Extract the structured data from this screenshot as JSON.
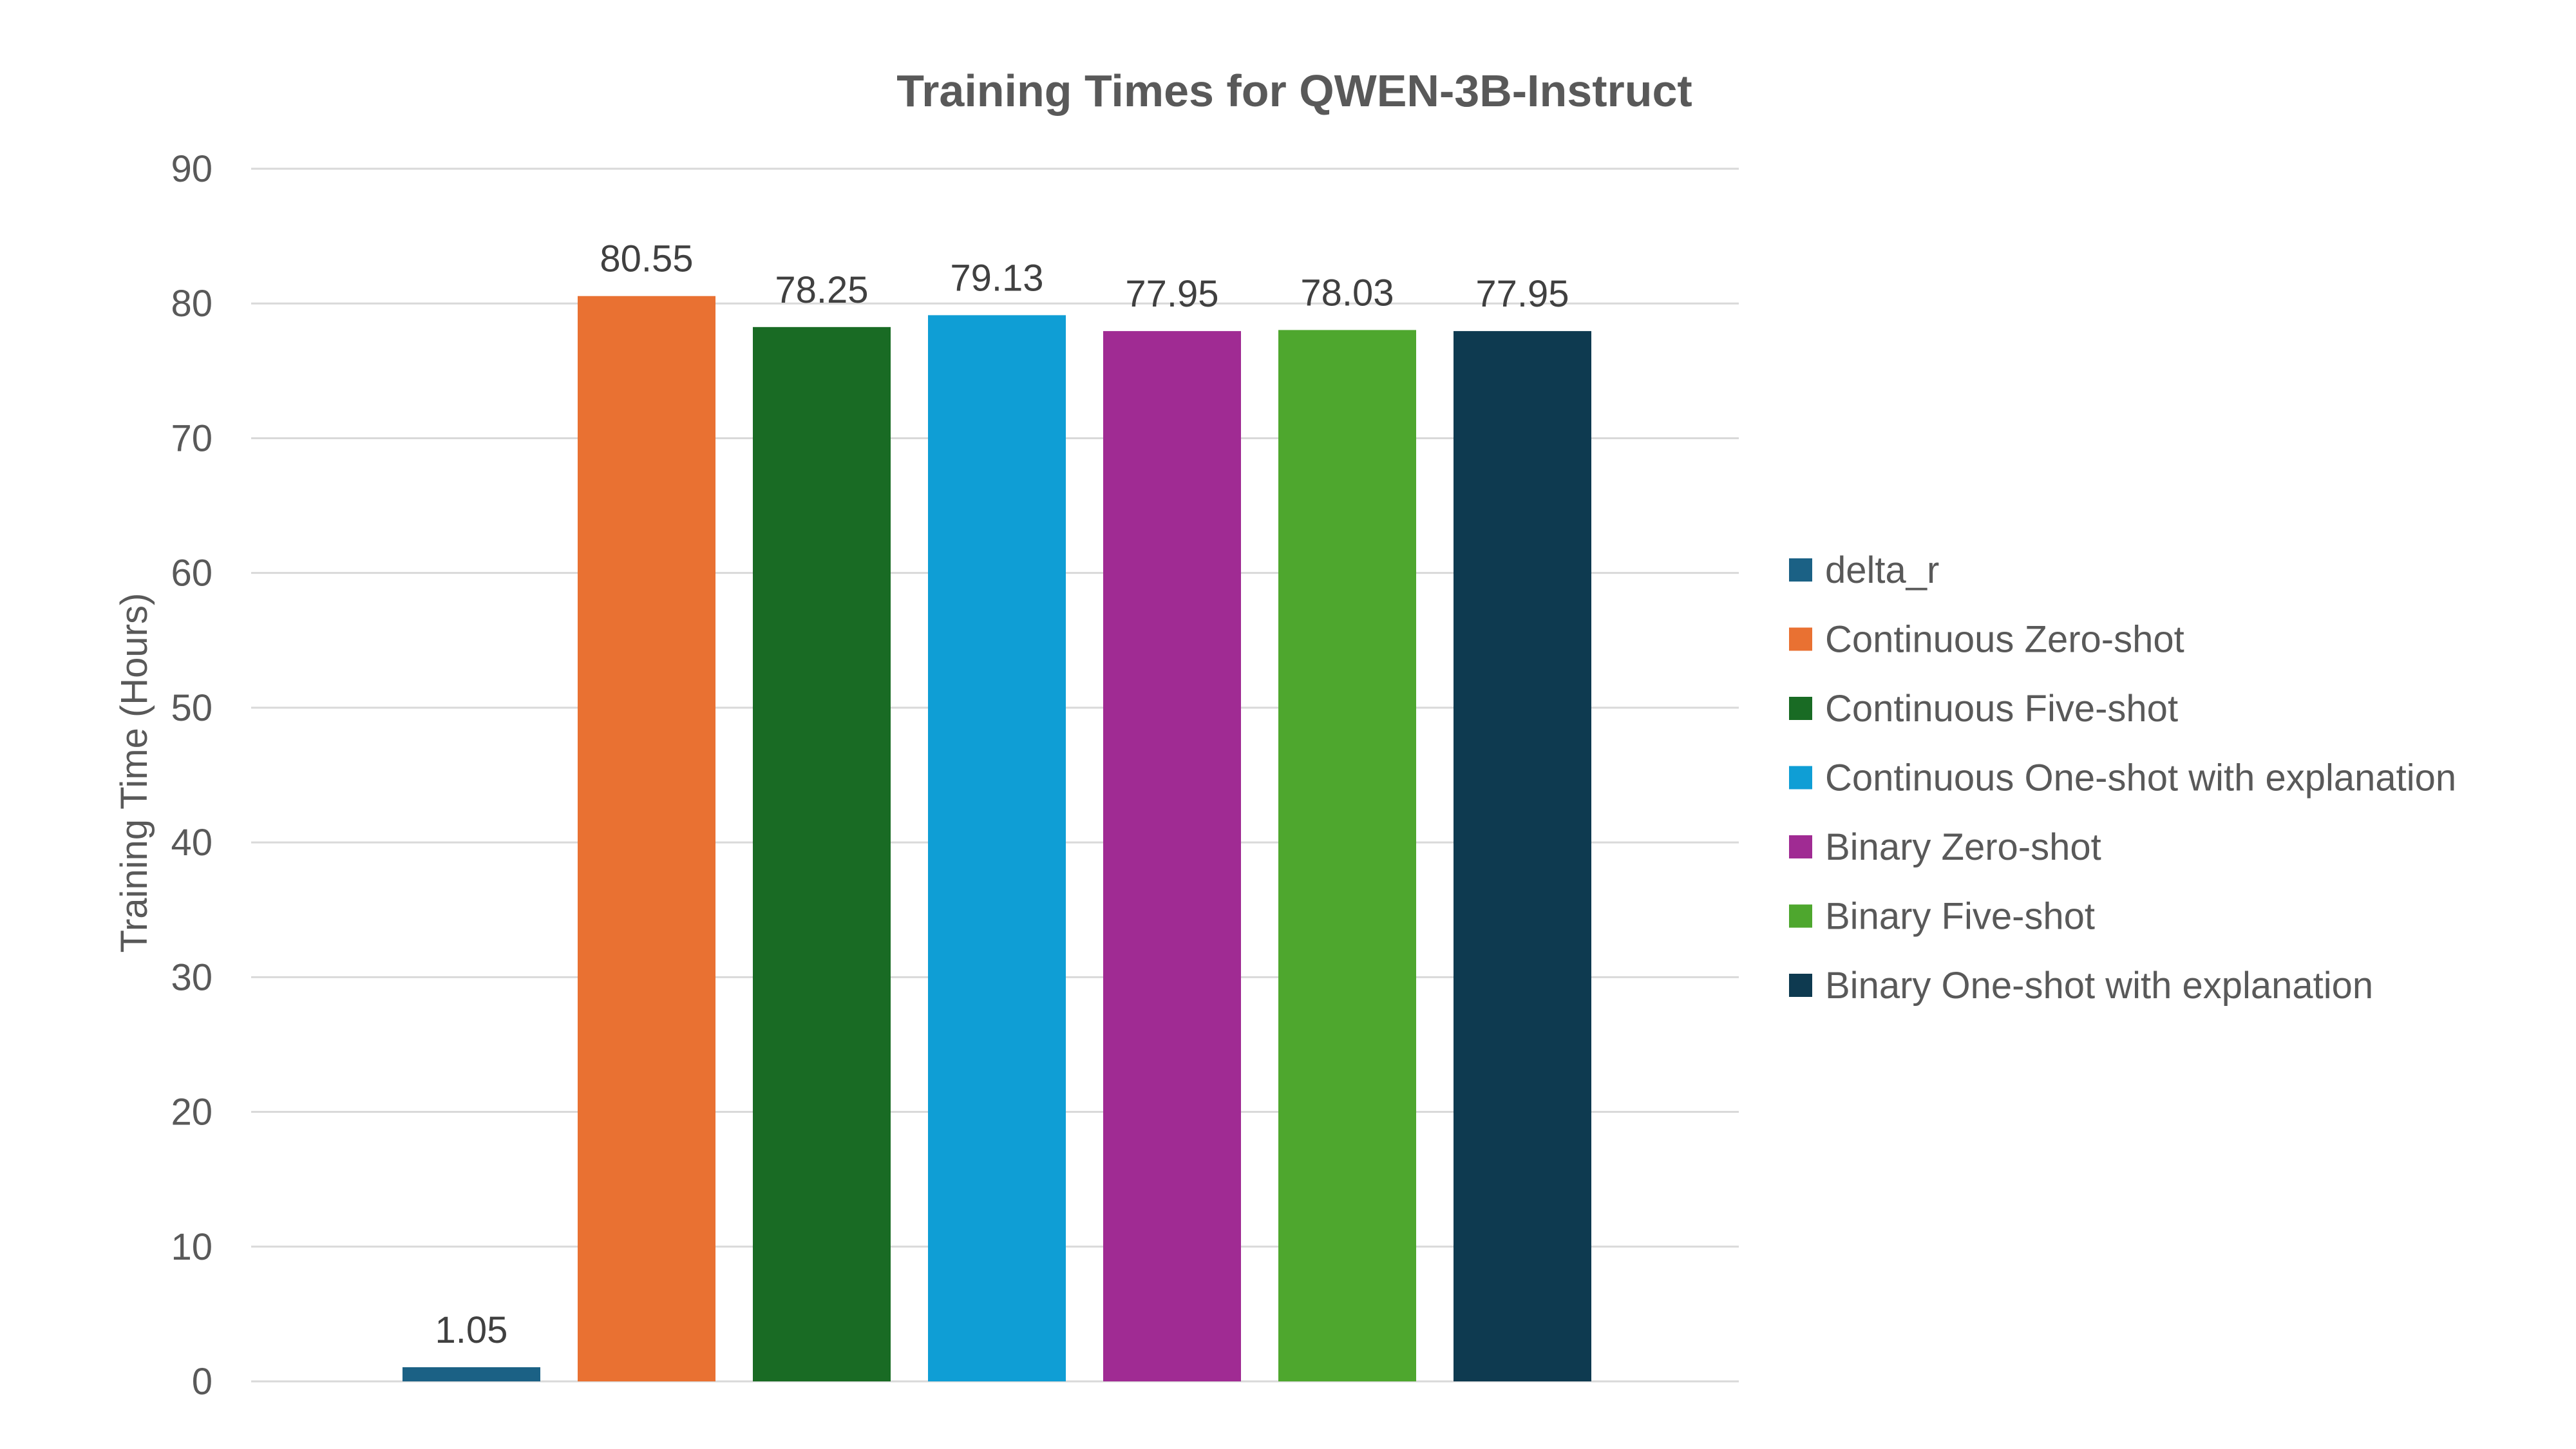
{
  "chart_data": {
    "type": "bar",
    "title": "Training Times for QWEN-3B-Instruct",
    "ylabel": "Training Time (Hours)",
    "xlabel": "",
    "ylim": [
      0,
      90
    ],
    "yticks": [
      0,
      10,
      20,
      30,
      40,
      50,
      60,
      70,
      80,
      90
    ],
    "grid": true,
    "legend_position": "right",
    "series": [
      {
        "name": "delta_r",
        "value": 1.05,
        "label": "1.05",
        "color": "#1b6185"
      },
      {
        "name": "Continuous Zero-shot",
        "value": 80.55,
        "label": "80.55",
        "color": "#e97132"
      },
      {
        "name": "Continuous Five-shot",
        "value": 78.25,
        "label": "78.25",
        "color": "#196b24"
      },
      {
        "name": "Continuous One-shot with explanation",
        "value": 79.13,
        "label": "79.13",
        "color": "#0f9ed5"
      },
      {
        "name": "Binary Zero-shot",
        "value": 77.95,
        "label": "77.95",
        "color": "#a02b93"
      },
      {
        "name": "Binary Five-shot",
        "value": 78.03,
        "label": "78.03",
        "color": "#4ea72e"
      },
      {
        "name": "Binary One-shot with explanation",
        "value": 77.95,
        "label": "77.95",
        "color": "#0e3a50"
      }
    ]
  }
}
